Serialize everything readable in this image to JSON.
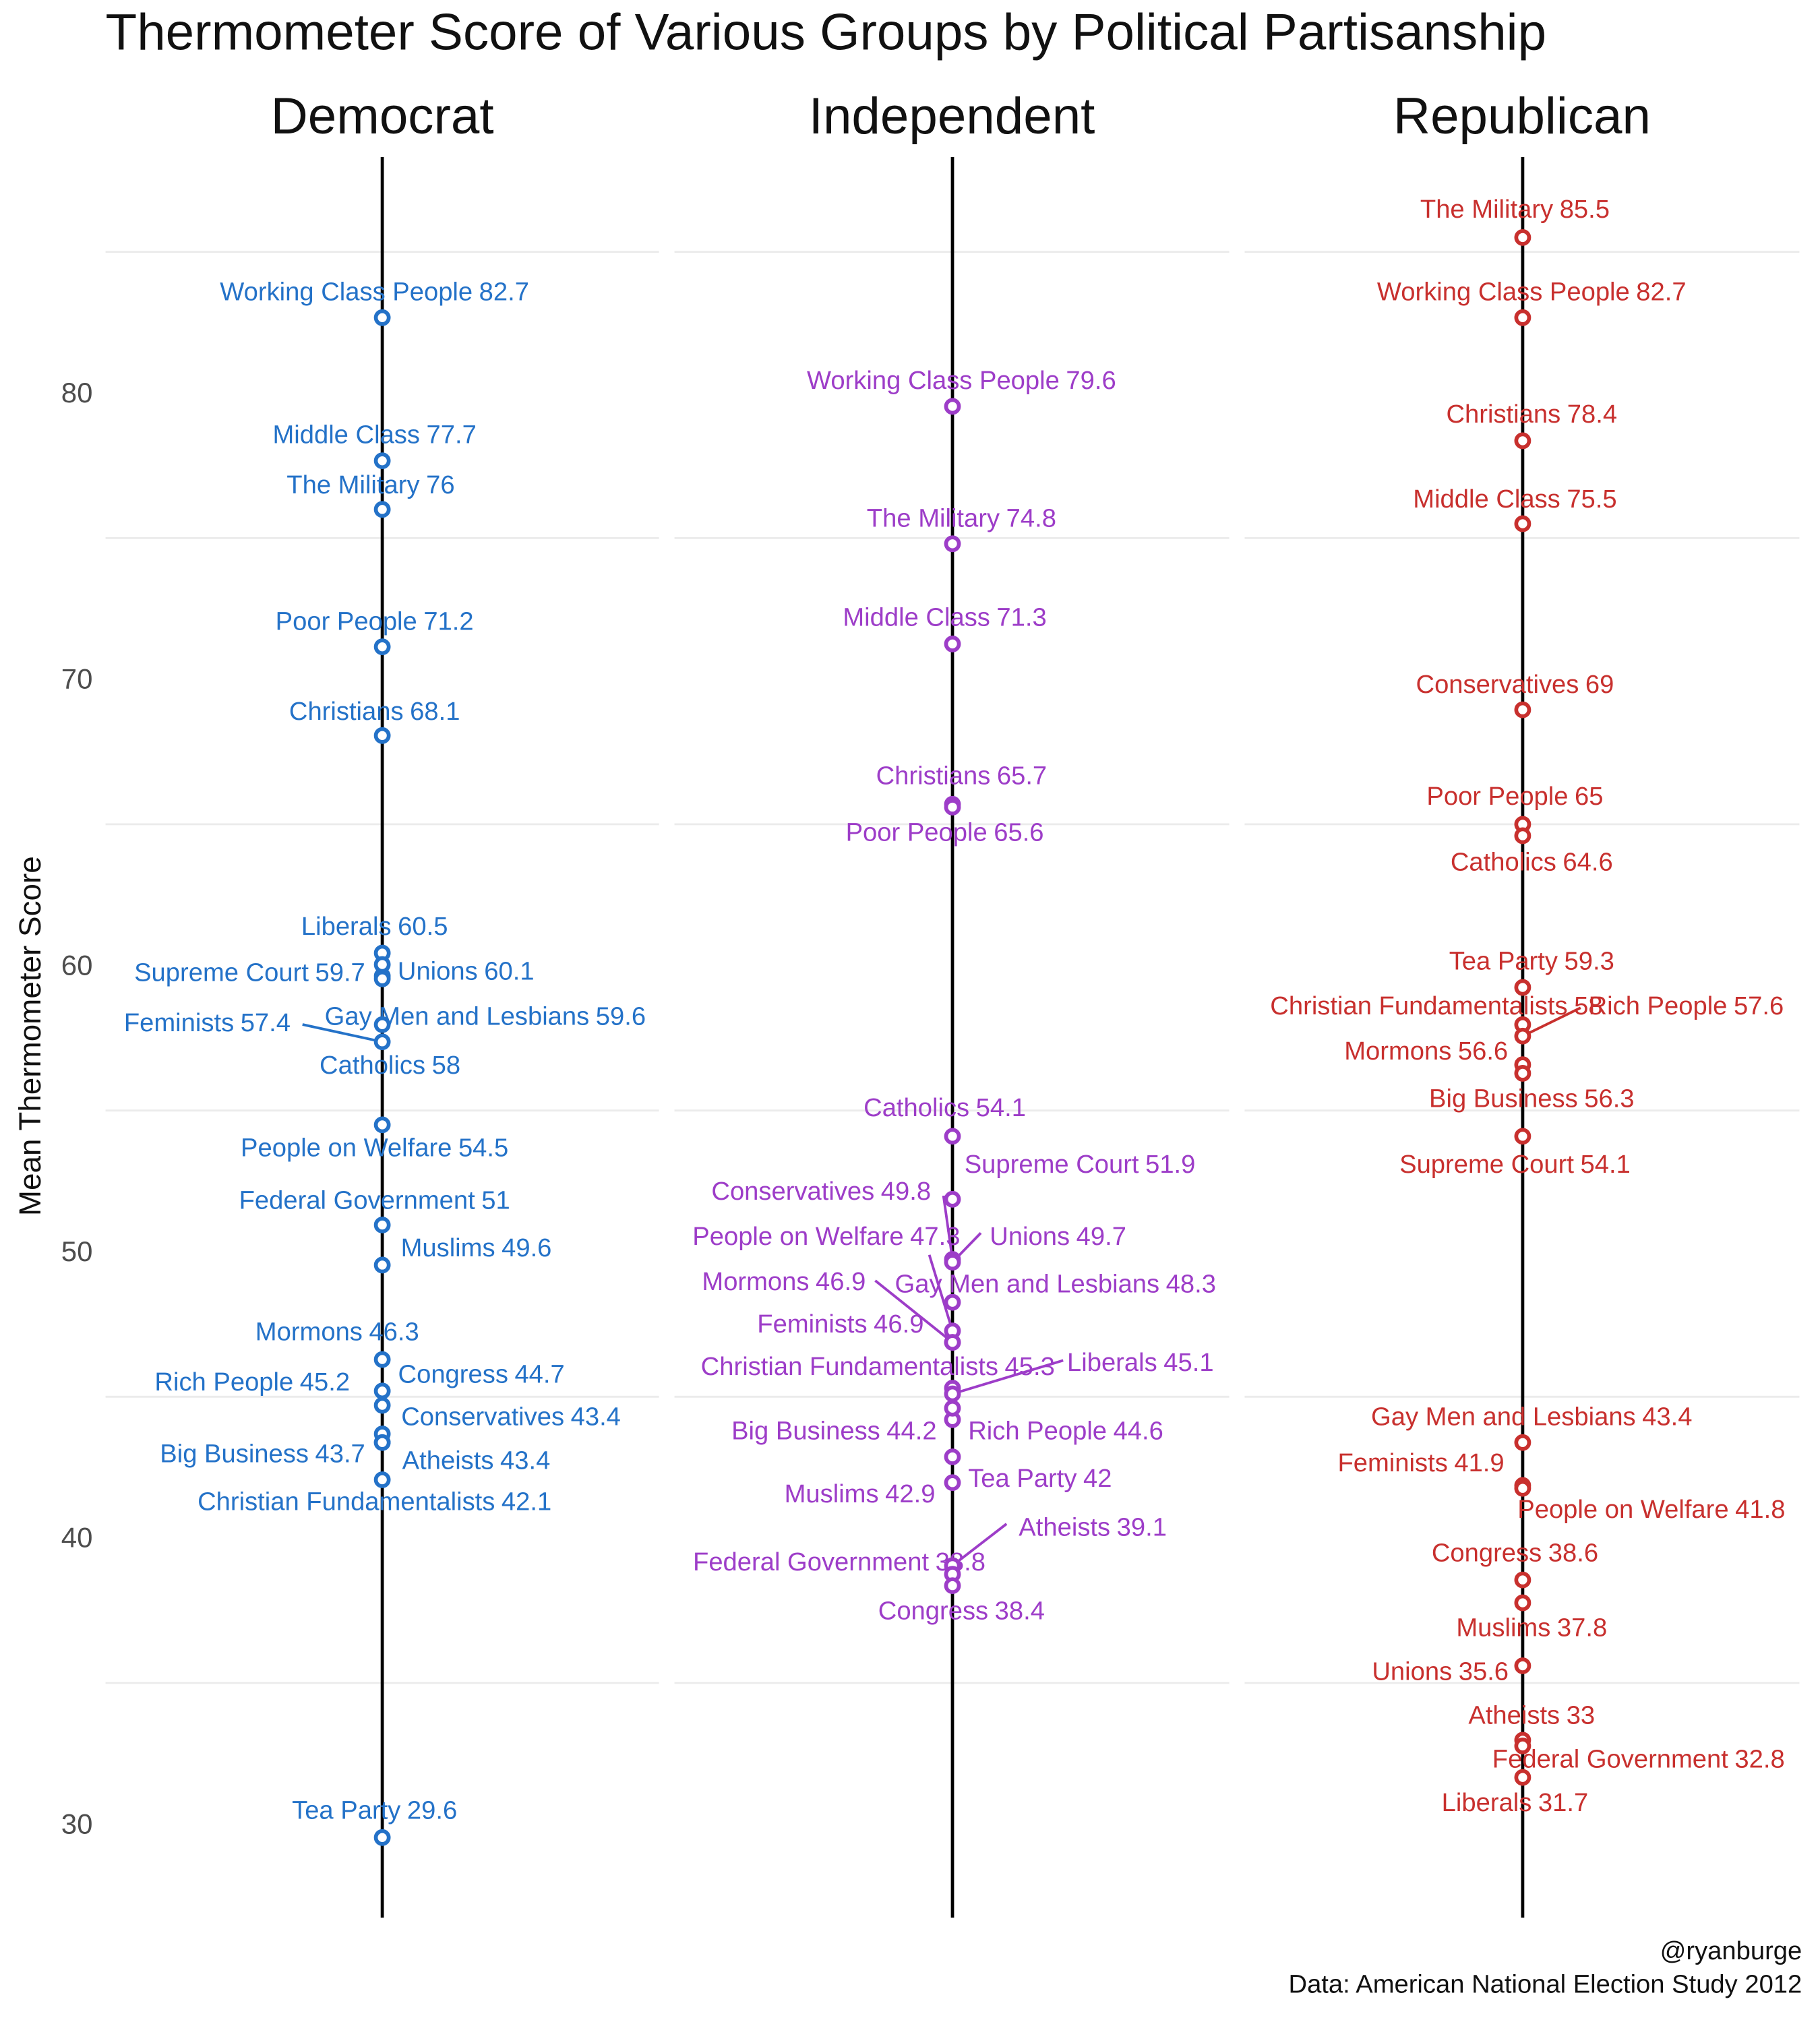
{
  "chart_data": {
    "type": "dot",
    "title": "Thermometer Score of Various Groups by Political Partisanship",
    "ylabel": "Mean Thermometer Score",
    "ylim": [
      26.8,
      88.4
    ],
    "yticks": [
      30,
      40,
      50,
      60,
      70,
      80
    ],
    "y_minor_grid": [
      35,
      45,
      55,
      65,
      75,
      85
    ],
    "caption_lines": [
      "@ryanburge",
      "Data: American National Election Study 2012"
    ],
    "series": [
      {
        "name": "Democrat",
        "color": "#2472c8",
        "categories": [
          "Working Class People",
          "Middle Class",
          "The Military",
          "Poor People",
          "Christians",
          "Liberals",
          "Supreme Court",
          "Unions",
          "Gay Men and Lesbians",
          "Feminists",
          "Catholics",
          "People on Welfare",
          "Federal Government",
          "Muslims",
          "Mormons",
          "Rich People",
          "Congress",
          "Conservatives",
          "Big Business",
          "Atheists",
          "Christian Fundamentalists",
          "Tea Party"
        ],
        "values": [
          82.7,
          77.7,
          76,
          71.2,
          68.1,
          60.5,
          59.7,
          60.1,
          59.6,
          57.4,
          58,
          54.5,
          51,
          49.6,
          46.3,
          45.2,
          44.7,
          43.4,
          43.7,
          43.4,
          42.1,
          29.6
        ]
      },
      {
        "name": "Independent",
        "color": "#9d3dc8",
        "categories": [
          "Working Class People",
          "The Military",
          "Middle Class",
          "Christians",
          "Poor People",
          "Catholics",
          "Supreme Court",
          "Conservatives",
          "People on Welfare",
          "Unions",
          "Mormons",
          "Gay Men and Lesbians",
          "Feminists",
          "Christian Fundamentalists",
          "Liberals",
          "Big Business",
          "Rich People",
          "Tea Party",
          "Muslims",
          "Atheists",
          "Federal Government",
          "Congress"
        ],
        "values": [
          79.6,
          74.8,
          71.3,
          65.7,
          65.6,
          54.1,
          51.9,
          49.8,
          47.3,
          49.7,
          46.9,
          48.3,
          46.9,
          45.3,
          45.1,
          44.2,
          44.6,
          42,
          42.9,
          39.1,
          38.8,
          38.4
        ]
      },
      {
        "name": "Republican",
        "color": "#c8302e",
        "categories": [
          "The Military",
          "Working Class People",
          "Christians",
          "Middle Class",
          "Conservatives",
          "Poor People",
          "Catholics",
          "Tea Party",
          "Christian Fundamentalists",
          "Rich People",
          "Mormons",
          "Big Business",
          "Supreme Court",
          "Gay Men and Lesbians",
          "Feminists",
          "People on Welfare",
          "Congress",
          "Muslims",
          "Unions",
          "Atheists",
          "Federal Government",
          "Liberals"
        ],
        "values": [
          85.5,
          82.7,
          78.4,
          75.5,
          69,
          65,
          64.6,
          59.3,
          58,
          57.6,
          56.6,
          56.3,
          54.1,
          43.4,
          41.9,
          41.8,
          38.6,
          37.8,
          35.6,
          33,
          32.8,
          31.7
        ]
      }
    ]
  }
}
